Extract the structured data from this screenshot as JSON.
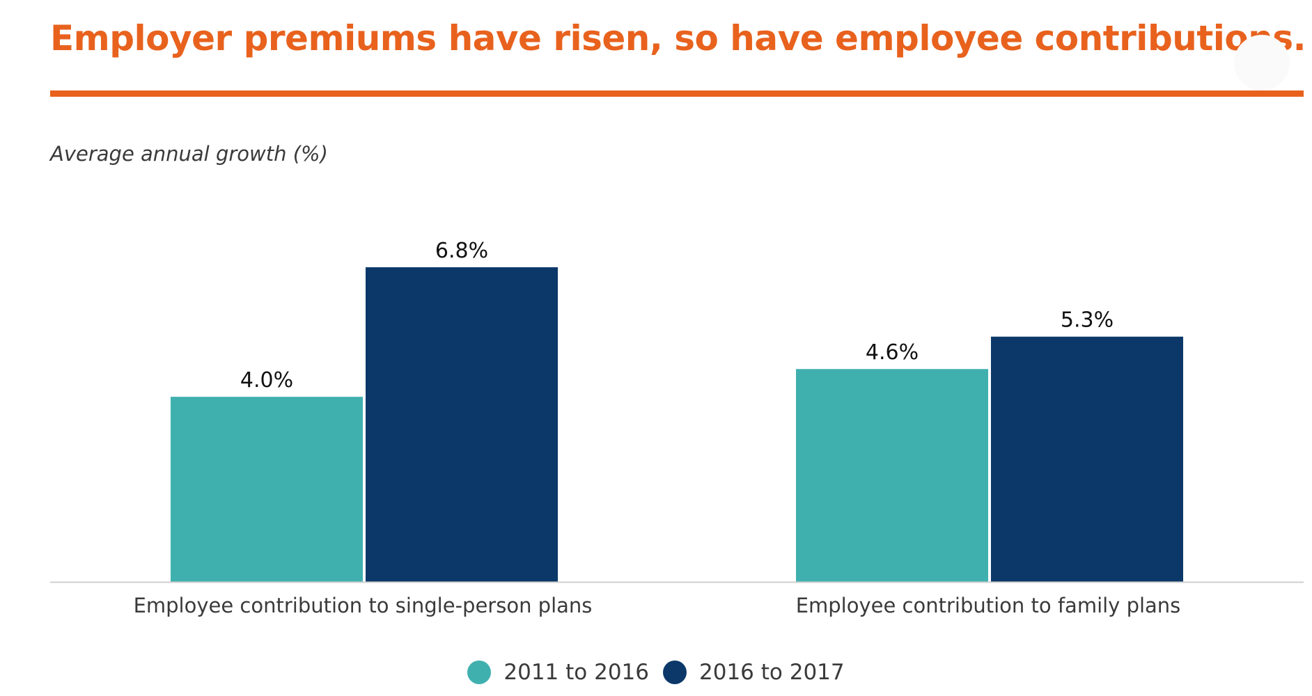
{
  "title": "Employer premiums have risen, so have employee contributions.",
  "subtitle": "Average annual growth (%)",
  "colors": {
    "title": "#E8621E",
    "rule": "#E8621E",
    "series_1": "#40B0AF",
    "series_2": "#0B3869",
    "axis": "#cfcfcf",
    "label_text": "#3a3a3a",
    "value_text": "#111111"
  },
  "legend_placement": "bottom-center",
  "chart_data": {
    "type": "bar",
    "categories": [
      "Employee contribution to single-person plans",
      "Employee contribution to family plans"
    ],
    "series": [
      {
        "name": "2011 to 2016",
        "values": [
          4.0,
          4.6
        ],
        "labels": [
          "4.0%",
          "4.6%"
        ]
      },
      {
        "name": "2016 to 2017",
        "values": [
          6.8,
          5.3
        ],
        "labels": [
          "6.8%",
          "5.3%"
        ]
      }
    ],
    "ylabel": "Average annual growth (%)",
    "ylim": [
      0,
      8
    ],
    "grid": false
  }
}
